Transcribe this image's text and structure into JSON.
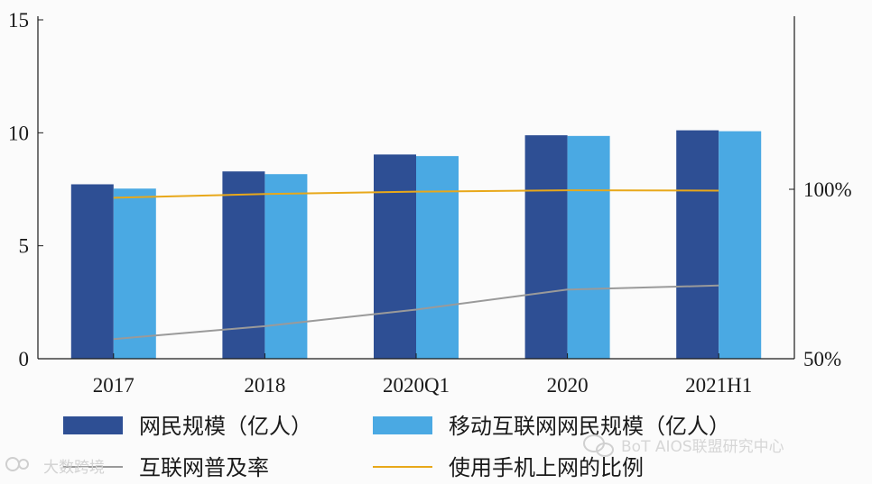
{
  "chart_data": {
    "type": "bar",
    "categories": [
      "2017",
      "2018",
      "2020Q1",
      "2020",
      "2021H1"
    ],
    "series": [
      {
        "name": "网民规模（亿人）",
        "axis": "left",
        "kind": "bar",
        "color": "#2e4f94",
        "values": [
          7.72,
          8.29,
          9.04,
          9.89,
          10.11
        ]
      },
      {
        "name": "移动互联网网民规模（亿人）",
        "axis": "left",
        "kind": "bar",
        "color": "#4aa9e3",
        "values": [
          7.53,
          8.17,
          8.97,
          9.86,
          10.07
        ]
      },
      {
        "name": "互联网普及率",
        "axis": "right",
        "kind": "line",
        "color": "#9a9a9a",
        "values": [
          55.8,
          59.6,
          64.5,
          70.4,
          71.6
        ]
      },
      {
        "name": "使用手机上网的比例",
        "axis": "right",
        "kind": "line",
        "color": "#e8a81a",
        "values": [
          97.5,
          98.6,
          99.3,
          99.7,
          99.6
        ]
      }
    ],
    "y_left": {
      "range": [
        0,
        15
      ],
      "ticks": [
        "0",
        "5",
        "10",
        "15"
      ]
    },
    "y_right": {
      "range": [
        50,
        150
      ],
      "ticks": [
        "50%",
        "100%"
      ],
      "tick_values": [
        50,
        100
      ]
    },
    "legend_position": "bottom"
  },
  "watermarks": {
    "left": "大数跨境",
    "right": "BoT AIOS联盟研究中心"
  }
}
